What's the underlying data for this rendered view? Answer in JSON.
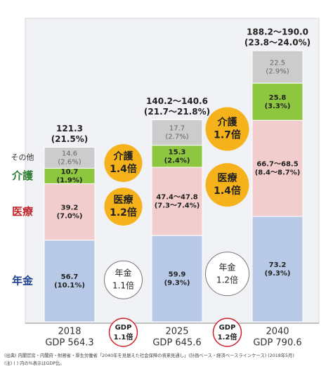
{
  "chart_data": {
    "type": "stacked-bar",
    "categories": [
      "2018",
      "2025",
      "2040"
    ],
    "gdp_labels": [
      "GDP 564.3",
      "GDP 645.6",
      "GDP 790.6"
    ],
    "series": [
      {
        "name": "年金",
        "color": "#b7c9e6",
        "label_color": "#1f3f8f",
        "values": [
          56.7,
          59.9,
          73.2
        ],
        "pct_labels": [
          "(10.1%)",
          "(9.3%)",
          "(9.3%)"
        ]
      },
      {
        "name": "医療",
        "color": "#f1cdcd",
        "label_color": "#c0282d",
        "values": [
          39.2,
          47.4,
          66.7
        ],
        "value_labels": [
          "39.2",
          "47.4～47.8",
          "66.7～68.5"
        ],
        "pct_labels": [
          "(7.0%)",
          "(7.3～7.4%)",
          "(8.4～8.7%)"
        ]
      },
      {
        "name": "介護",
        "color": "#8dc63f",
        "label_color": "#2e7d32",
        "values": [
          10.7,
          15.3,
          25.8
        ],
        "pct_labels": [
          "(1.9%)",
          "(2.4%)",
          "(3.3%)"
        ]
      },
      {
        "name": "その他",
        "color": "#cccccc",
        "label_color": "#333333",
        "values": [
          14.6,
          17.7,
          22.5
        ],
        "pct_labels": [
          "(2.6%)",
          "(2.7%)",
          "(2.9%)"
        ]
      }
    ],
    "total_labels": [
      "121.3",
      "140.2～140.6",
      "188.2～190.0"
    ],
    "total_pct_labels": [
      "(21.5%)",
      "(21.7～21.8%)",
      "(23.8～24.0%)"
    ],
    "growth": [
      [
        "1.1倍",
        "1.2倍",
        "1.4倍"
      ],
      [
        "1.2倍",
        "1.4倍",
        "1.7倍"
      ]
    ],
    "gdp_badge_title": "GDP",
    "gdp_growth": [
      "1.1倍",
      "1.2倍"
    ],
    "notes": [
      "(出典) 内閣官房・内閣府・財務省・厚生労働省「2040年を見据えた社会保障の将来見通し」(計画ベース・経済ベースラインケース) (2018年5月)",
      "(注) ( ) 内の%表示はGDP比。"
    ]
  }
}
